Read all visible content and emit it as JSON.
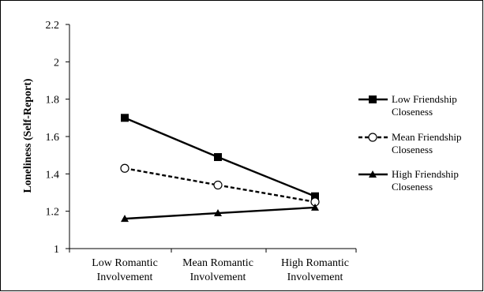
{
  "chart_data": {
    "type": "line",
    "title": "",
    "xlabel": "",
    "ylabel": "Loneliness (Self-Report)",
    "ylim": [
      1,
      2.2
    ],
    "y_ticks": [
      "1",
      "1.2",
      "1.4",
      "1.6",
      "1.8",
      "2",
      "2.2"
    ],
    "categories": [
      [
        "Low Romantic",
        "Involvement"
      ],
      [
        "Mean Romantic",
        "Involvement"
      ],
      [
        "High Romantic",
        "Involvement"
      ]
    ],
    "grid": false,
    "legend_position": "right",
    "series": [
      {
        "name_lines": [
          "Low Friendship",
          "Closeness"
        ],
        "values": [
          1.7,
          1.49,
          1.28
        ],
        "marker": "square",
        "line_style": "solid",
        "color": "#000000"
      },
      {
        "name_lines": [
          "Mean Friendship",
          "Closeness"
        ],
        "values": [
          1.43,
          1.34,
          1.25
        ],
        "marker": "circle-open",
        "line_style": "dashed",
        "color": "#000000"
      },
      {
        "name_lines": [
          "High Friendship",
          "Closeness"
        ],
        "values": [
          1.16,
          1.19,
          1.22
        ],
        "marker": "triangle",
        "line_style": "solid",
        "color": "#000000"
      }
    ]
  }
}
